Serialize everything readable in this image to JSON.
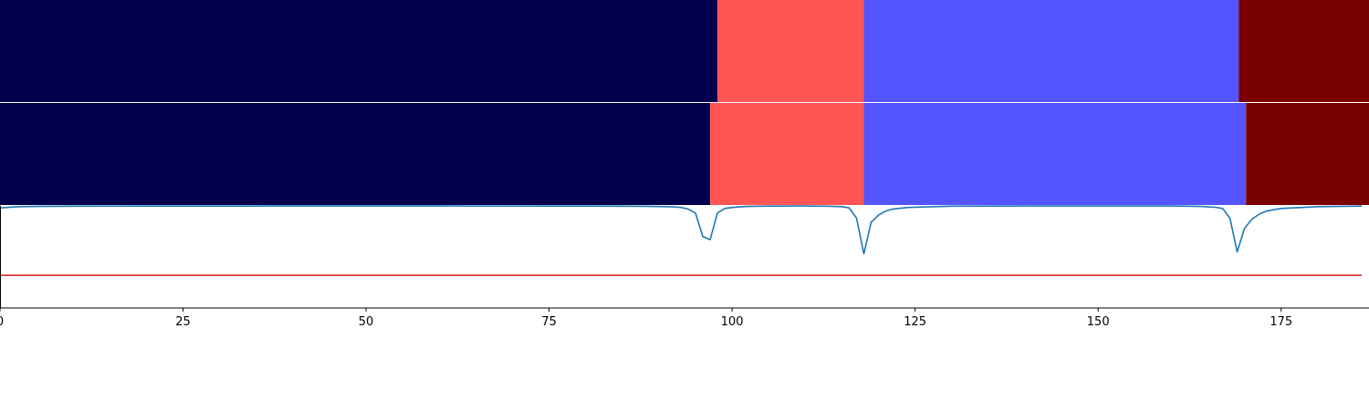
{
  "chart_data": [
    {
      "type": "heatmap",
      "panel": "top-strip",
      "xlim": [
        0,
        187
      ],
      "segments": [
        {
          "start": 0,
          "end": 98,
          "color": "#00004d"
        },
        {
          "start": 98,
          "end": 118,
          "color": "#ff5555"
        },
        {
          "start": 118,
          "end": 169.2,
          "color": "#5555ff"
        },
        {
          "start": 169.2,
          "end": 187,
          "color": "#7a0000"
        }
      ]
    },
    {
      "type": "heatmap",
      "panel": "middle-strip",
      "xlim": [
        0,
        187
      ],
      "segments": [
        {
          "start": 0,
          "end": 97,
          "color": "#00004d"
        },
        {
          "start": 97,
          "end": 118,
          "color": "#ff5555"
        },
        {
          "start": 118,
          "end": 170.2,
          "color": "#5555ff"
        },
        {
          "start": 170.2,
          "end": 187,
          "color": "#7a0000"
        }
      ]
    },
    {
      "type": "line",
      "panel": "bottom-plot",
      "xlim": [
        0,
        187
      ],
      "ylim": [
        0,
        1
      ],
      "x_ticks": [
        0,
        25,
        50,
        75,
        100,
        125,
        150,
        175
      ],
      "x_tick_labels": [
        "0",
        "25",
        "50",
        "75",
        "100",
        "125",
        "150",
        "175"
      ],
      "series": [
        {
          "color": "#1f77b4",
          "x": [
            0,
            1,
            2,
            3,
            5,
            10,
            20,
            40,
            60,
            80,
            88,
            90,
            92,
            93,
            94,
            95,
            96,
            97,
            98,
            99,
            100,
            102,
            105,
            110,
            113,
            115,
            116,
            117,
            118,
            119,
            120,
            121,
            122,
            124,
            130,
            140,
            150,
            160,
            164,
            166,
            167,
            168,
            169,
            170,
            171,
            172,
            173,
            175,
            180,
            186
          ],
          "y": [
            0.98,
            0.985,
            0.99,
            0.993,
            0.995,
            0.997,
            0.998,
            0.999,
            0.999,
            0.998,
            0.996,
            0.994,
            0.99,
            0.985,
            0.97,
            0.93,
            0.7,
            0.67,
            0.93,
            0.975,
            0.985,
            0.995,
            0.998,
            0.999,
            0.997,
            0.993,
            0.98,
            0.88,
            0.53,
            0.84,
            0.91,
            0.95,
            0.97,
            0.985,
            0.997,
            0.999,
            0.999,
            0.999,
            0.995,
            0.987,
            0.975,
            0.88,
            0.55,
            0.78,
            0.87,
            0.92,
            0.95,
            0.975,
            0.993,
            0.998
          ]
        },
        {
          "color": "#d62728",
          "x": [
            0,
            186
          ],
          "y": [
            0.32,
            0.32
          ]
        }
      ]
    }
  ]
}
